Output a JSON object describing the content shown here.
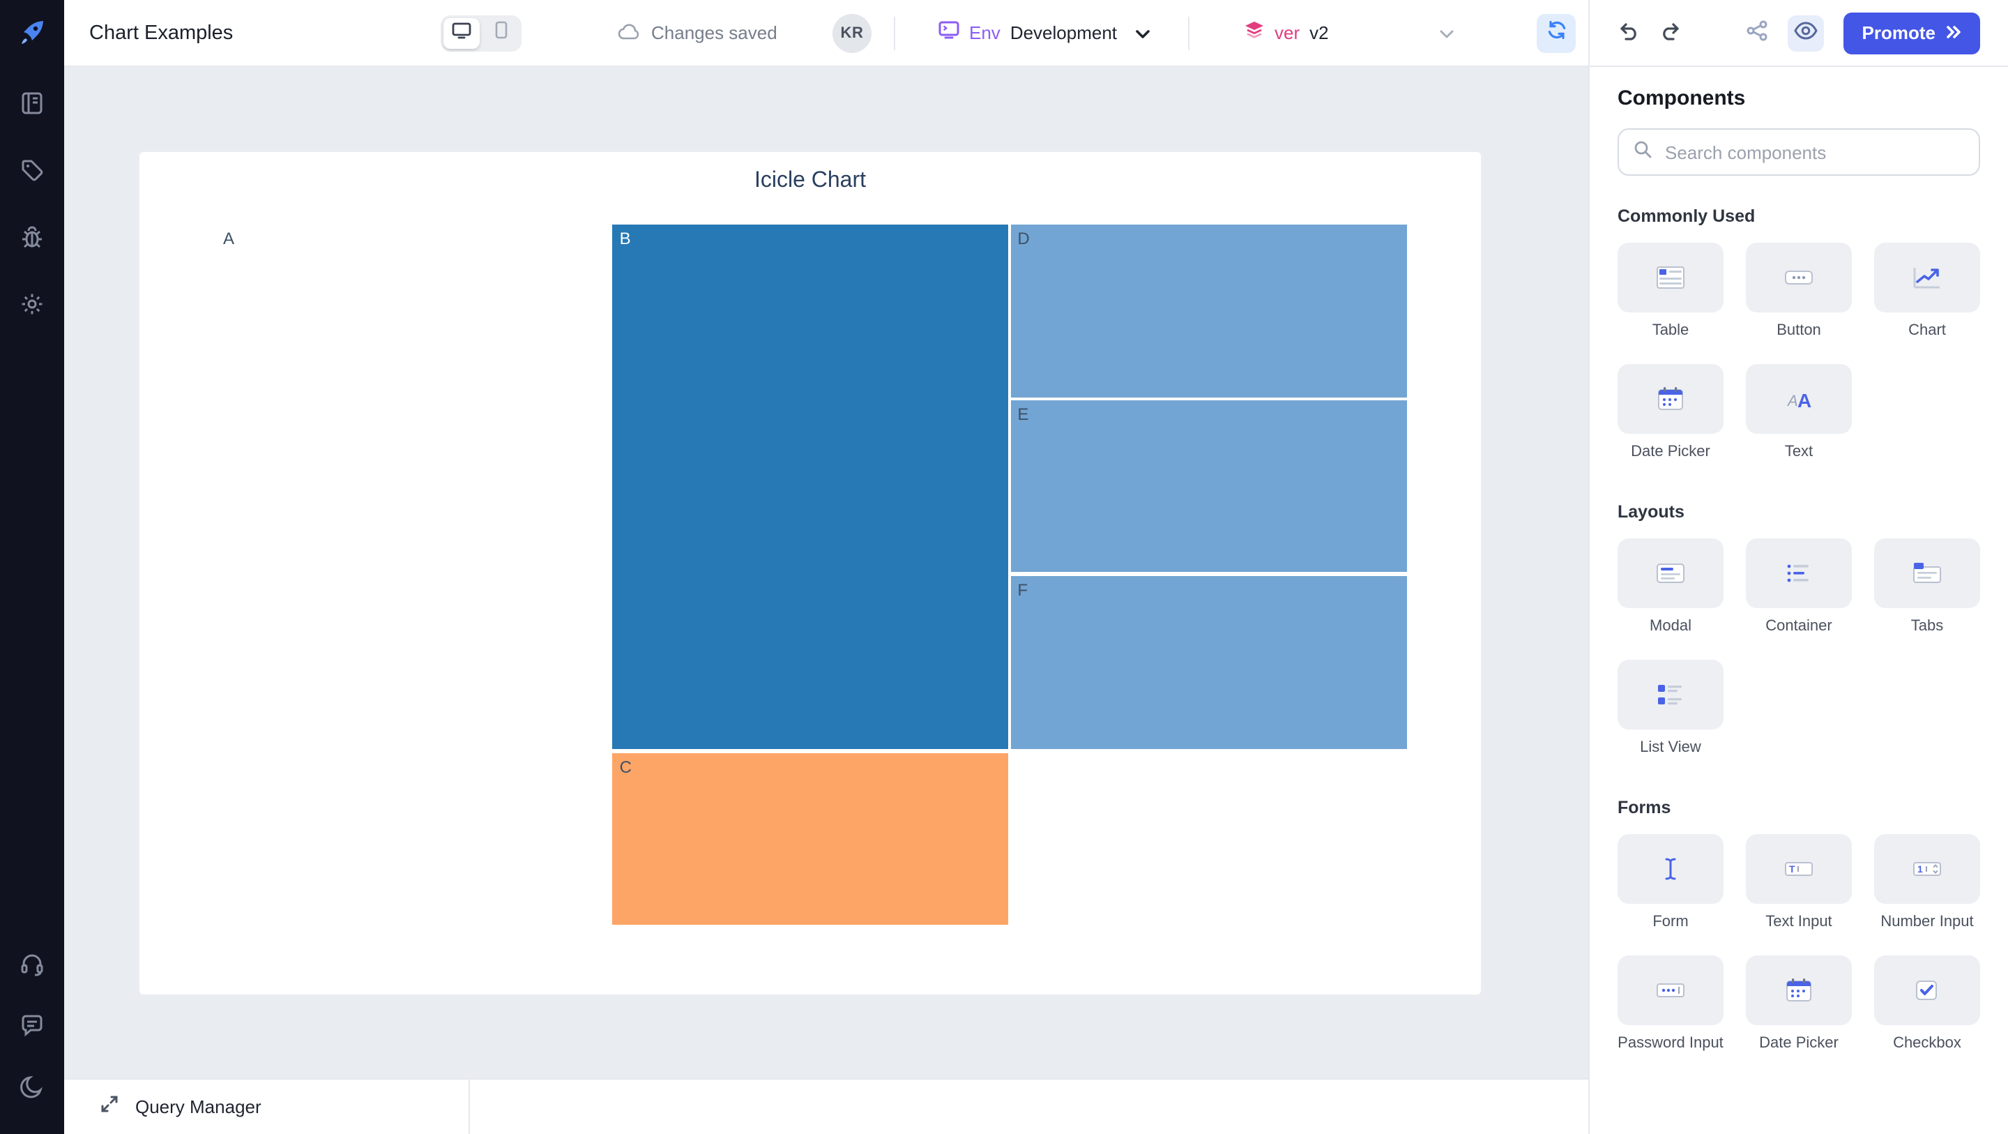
{
  "header": {
    "title": "Chart Examples",
    "autosave_status": "Changes saved",
    "avatar_initials": "KR",
    "environment": {
      "label": "Env",
      "value": "Development"
    },
    "version": {
      "label": "ver",
      "value": "v2"
    },
    "promote_label": "Promote"
  },
  "bottom_bar": {
    "query_manager_label": "Query Manager"
  },
  "chart_data": {
    "type": "icicle",
    "title": "Icicle Chart",
    "orientation": "horizontal-left-to-right",
    "nodes": [
      {
        "id": "A",
        "label": "A",
        "parent": "",
        "color": "#ffffff",
        "text_color": "#3d5068",
        "x0": 0,
        "x1": 0.3317,
        "y0": 0,
        "y1": 1
      },
      {
        "id": "B",
        "label": "B",
        "parent": "A",
        "color": "#2679b5",
        "text_color": "#ffffff",
        "x0": 0.3329,
        "x1": 0.6648,
        "y0": 0,
        "y1": 0.7495
      },
      {
        "id": "C",
        "label": "C",
        "parent": "A",
        "color": "#fca566",
        "text_color": "#3d5068",
        "x0": 0.3329,
        "x1": 0.6648,
        "y0": 0.7555,
        "y1": 1
      },
      {
        "id": "D",
        "label": "D",
        "parent": "B",
        "color": "#72a5d3",
        "text_color": "#3d5068",
        "x0": 0.6671,
        "x1": 1,
        "y0": 0,
        "y1": 0.2464
      },
      {
        "id": "E",
        "label": "E",
        "parent": "B",
        "color": "#72a5d3",
        "text_color": "#3d5068",
        "x0": 0.6671,
        "x1": 1,
        "y0": 0.2518,
        "y1": 0.4964
      },
      {
        "id": "F",
        "label": "F",
        "parent": "B",
        "color": "#72a5d3",
        "text_color": "#3d5068",
        "x0": 0.6671,
        "x1": 1,
        "y0": 0.5018,
        "y1": 0.7495
      }
    ]
  },
  "components_panel": {
    "title": "Components",
    "search_placeholder": "Search components",
    "sections": [
      {
        "name": "Commonly Used",
        "items": [
          {
            "label": "Table",
            "icon": "table-icon"
          },
          {
            "label": "Button",
            "icon": "button-icon"
          },
          {
            "label": "Chart",
            "icon": "chart-icon"
          },
          {
            "label": "Date Picker",
            "icon": "date-picker-icon"
          },
          {
            "label": "Text",
            "icon": "text-icon"
          }
        ]
      },
      {
        "name": "Layouts",
        "items": [
          {
            "label": "Modal",
            "icon": "modal-icon"
          },
          {
            "label": "Container",
            "icon": "container-icon"
          },
          {
            "label": "Tabs",
            "icon": "tabs-icon"
          },
          {
            "label": "List View",
            "icon": "list-view-icon"
          }
        ]
      },
      {
        "name": "Forms",
        "items": [
          {
            "label": "Form",
            "icon": "form-icon"
          },
          {
            "label": "Text Input",
            "icon": "text-input-icon"
          },
          {
            "label": "Number Input",
            "icon": "number-input-icon"
          },
          {
            "label": "Password Input",
            "icon": "password-input-icon"
          },
          {
            "label": "Date Picker",
            "icon": "date-picker-icon"
          },
          {
            "label": "Checkbox",
            "icon": "checkbox-icon"
          }
        ]
      }
    ]
  },
  "colors": {
    "accent": "#4356e6",
    "environment_accent": "#8b5cf6",
    "version_accent": "#e23d7f",
    "sidebar_bg": "#10121f",
    "canvas_bg": "#e9edf1",
    "icicle_dark_blue": "#2679b5",
    "icicle_light_blue": "#72a5d3",
    "icicle_orange": "#fca566"
  }
}
